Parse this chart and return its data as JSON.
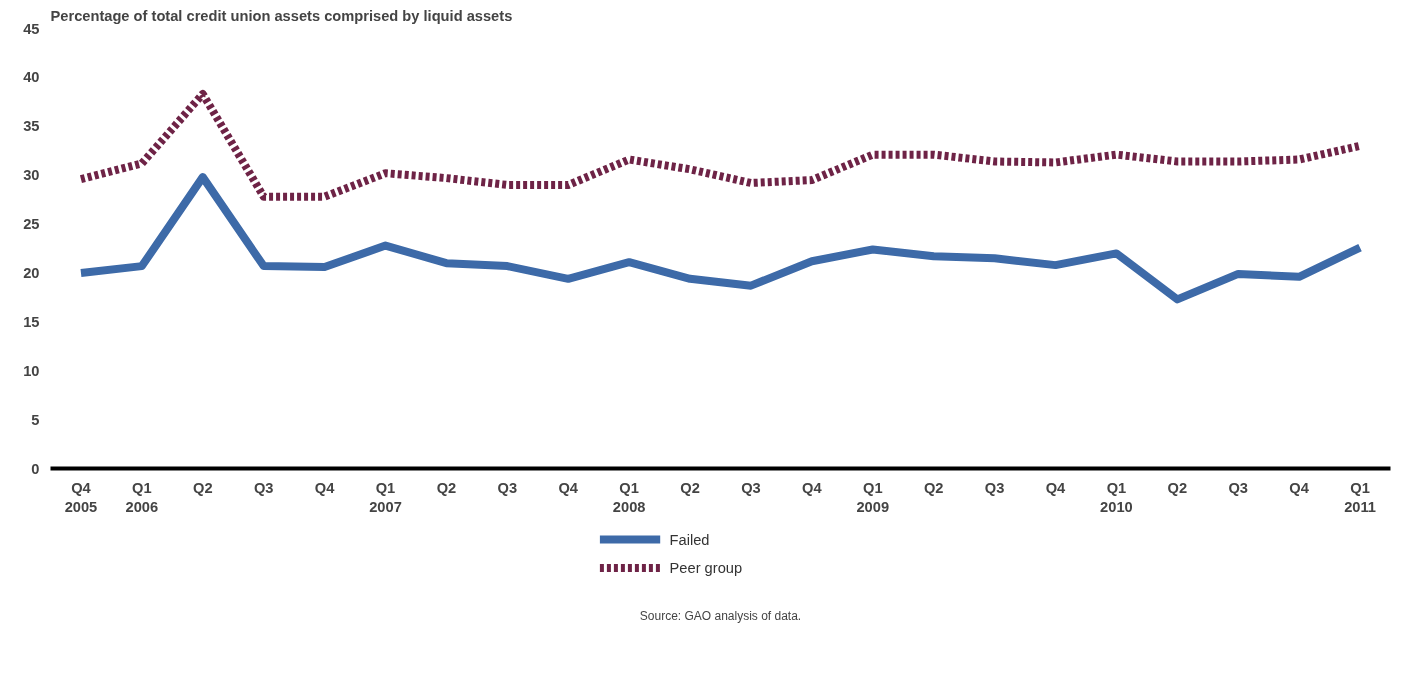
{
  "chart_data": {
    "type": "line",
    "title": "Percentage of total credit union assets comprised by liquid assets",
    "categories": [
      "Q4\n2005",
      "Q1\n2006",
      "Q2",
      "Q3",
      "Q4",
      "Q1\n2007",
      "Q2",
      "Q3",
      "Q4",
      "Q1\n2008",
      "Q2",
      "Q3",
      "Q4",
      "Q1\n2009",
      "Q2",
      "Q3",
      "Q4",
      "Q1\n2010",
      "Q2",
      "Q3",
      "Q4",
      "Q1\n2011"
    ],
    "series": [
      {
        "name": "Failed",
        "color": "#3d6aa8",
        "line_style": "solid",
        "values": [
          20.0,
          20.7,
          29.8,
          20.7,
          20.6,
          22.8,
          21.0,
          20.7,
          19.4,
          21.1,
          19.4,
          18.7,
          21.2,
          22.4,
          21.7,
          21.5,
          20.8,
          22.0,
          17.3,
          19.9,
          19.6,
          22.6
        ]
      },
      {
        "name": "Peer group",
        "color": "#6e2346",
        "line_style": "dashed",
        "values": [
          29.6,
          31.2,
          38.3,
          27.8,
          27.8,
          30.2,
          29.7,
          29.0,
          29.0,
          31.6,
          30.6,
          29.2,
          29.5,
          32.1,
          32.1,
          31.4,
          31.3,
          32.1,
          31.4,
          31.4,
          31.6,
          33.0
        ]
      }
    ],
    "ylim": [
      0,
      45
    ],
    "yticks": [
      0,
      5,
      10,
      15,
      20,
      25,
      30,
      35,
      40,
      45
    ],
    "grid": false,
    "legend": "bottom",
    "marker": "none",
    "annotations": [
      "Source: GAO analysis of data."
    ]
  }
}
